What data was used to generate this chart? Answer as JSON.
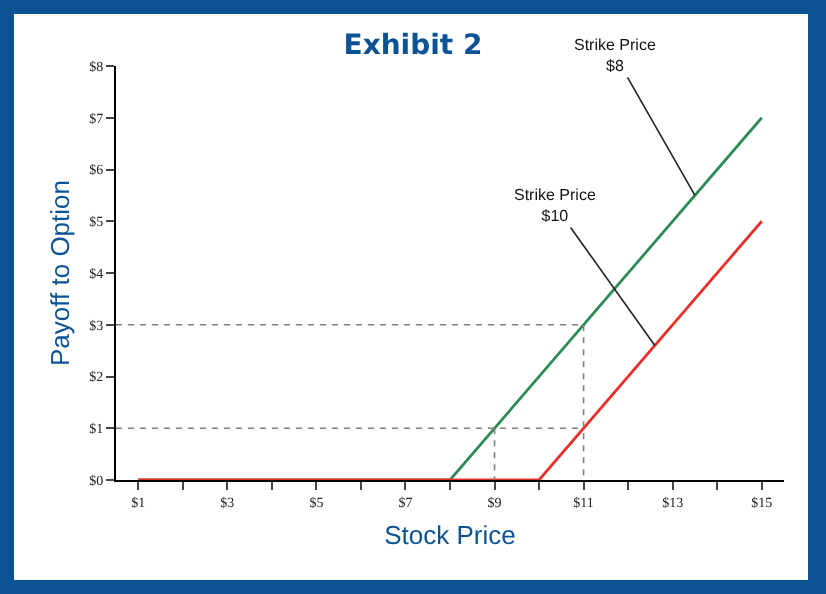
{
  "chart_data": {
    "type": "line",
    "title": "Exhibit 2",
    "xlabel": "Stock Price",
    "ylabel": "Payoff to Option",
    "x": [
      1,
      8,
      15
    ],
    "series": [
      {
        "color": "#2e8b57",
        "values": [
          0,
          0,
          7
        ]
      },
      {
        "color": "#e8302a",
        "x": [
          1,
          10,
          15
        ],
        "values": [
          0,
          0,
          5
        ]
      },
      {
        "color": "#7f7f7f",
        "x": [
          0.5,
          11,
          11
        ],
        "values": [
          3,
          3,
          0
        ],
        "line_style": "dotted"
      },
      {
        "color": "#7f7f7f",
        "x": [
          0.5,
          11
        ],
        "values": [
          1,
          1
        ],
        "line_style": "dotted"
      },
      {
        "color": "#7f7f7f",
        "x": [
          9,
          9
        ],
        "values": [
          1,
          0
        ],
        "line_style": "dotted"
      }
    ],
    "annotations": [
      {
        "text": "Strike Price\n$8",
        "x": 13.5,
        "y": 5.5
      },
      {
        "text": "Strike Price\n$10",
        "x": 12.6,
        "y": 2.6
      }
    ],
    "xlim": [
      0.5,
      15.5
    ],
    "xticks": [
      {
        "value": 1,
        "label": "$1"
      },
      {
        "value": 2,
        "label": null
      },
      {
        "value": 3,
        "label": "$3"
      },
      {
        "value": 4,
        "label": null
      },
      {
        "value": 5,
        "label": "$5"
      },
      {
        "value": 6,
        "label": null
      },
      {
        "value": 7,
        "label": "$7"
      },
      {
        "value": 8,
        "label": null
      },
      {
        "value": 9,
        "label": "$9"
      },
      {
        "value": 10,
        "label": null
      },
      {
        "value": 11,
        "label": "$11"
      },
      {
        "value": 12,
        "label": null
      },
      {
        "value": 13,
        "label": "$13"
      },
      {
        "value": 14,
        "label": null
      },
      {
        "value": 15,
        "label": "$15"
      }
    ],
    "ylim": [
      0,
      8
    ],
    "yticks": [
      {
        "value": 0,
        "label": "$0"
      },
      {
        "value": 1,
        "label": "$1"
      },
      {
        "value": 2,
        "label": "$2"
      },
      {
        "value": 3,
        "label": "$3"
      },
      {
        "value": 4,
        "label": "$4"
      },
      {
        "value": 5,
        "label": "$5"
      },
      {
        "value": 6,
        "label": "$6"
      },
      {
        "value": 7,
        "label": "$7"
      },
      {
        "value": 8,
        "label": "$8"
      }
    ],
    "marker": "none",
    "line_style": "solid"
  }
}
